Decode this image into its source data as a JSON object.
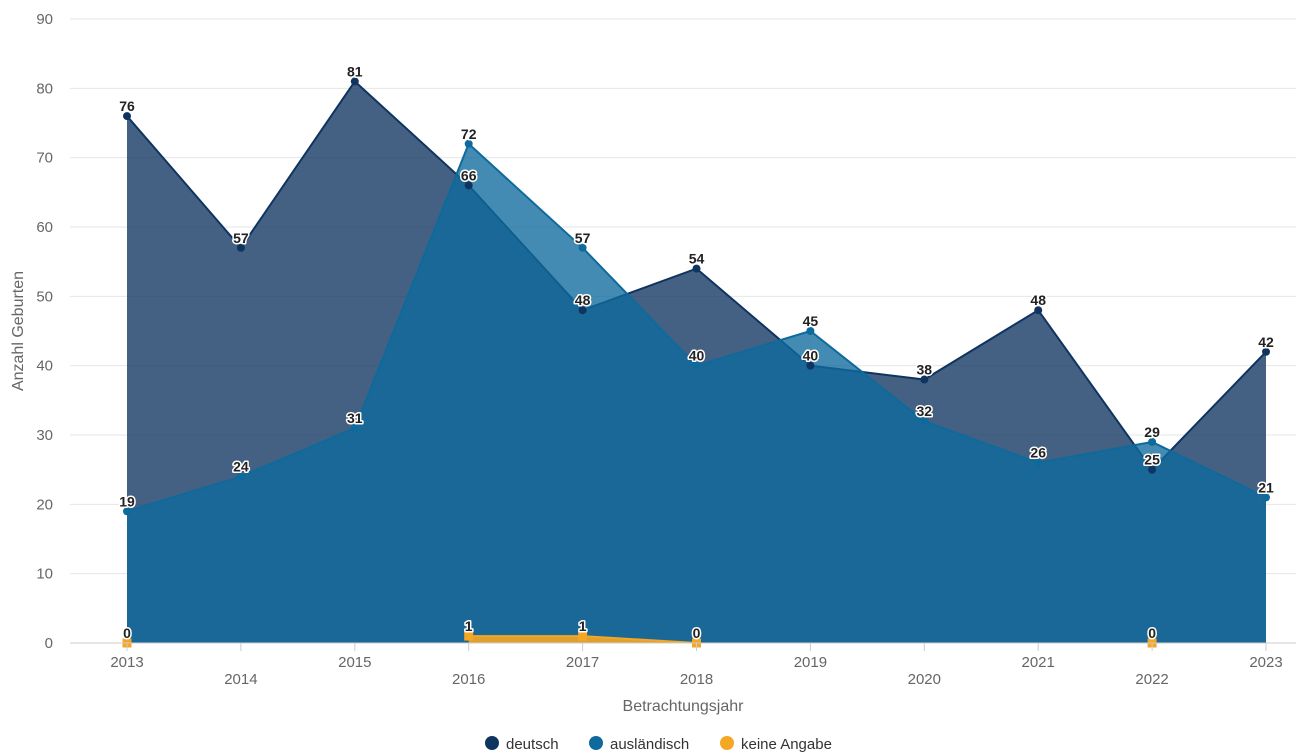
{
  "chart_data": {
    "type": "area",
    "x": [
      "2013",
      "2014",
      "2015",
      "2016",
      "2017",
      "2018",
      "2019",
      "2020",
      "2021",
      "2022",
      "2023"
    ],
    "xlabel": "Betrachtungsjahr",
    "ylabel": "Anzahl Geburten",
    "ylim": [
      0,
      90
    ],
    "yticks": [
      0,
      10,
      20,
      30,
      40,
      50,
      60,
      70,
      80,
      90
    ],
    "grid": true,
    "legend_position": "bottom-center",
    "series": [
      {
        "name": "deutsch",
        "color": "#0f3460",
        "values": [
          76,
          57,
          81,
          66,
          48,
          54,
          40,
          38,
          48,
          25,
          42
        ],
        "labels": [
          "76",
          "57",
          "81",
          "66",
          "48",
          "54",
          "40",
          "38",
          "48",
          "25",
          "42"
        ]
      },
      {
        "name": "ausländisch",
        "color": "#0e6a9c",
        "values": [
          19,
          24,
          31,
          72,
          57,
          40,
          45,
          32,
          26,
          29,
          21
        ],
        "labels": [
          "19",
          "24",
          "31",
          "72",
          "57",
          "40",
          "45",
          "32",
          "26",
          "29",
          "21"
        ]
      },
      {
        "name": "keine Angabe",
        "color": "#f5a623",
        "values": [
          0,
          null,
          null,
          1,
          1,
          0,
          null,
          null,
          null,
          0,
          null
        ],
        "labels": [
          "0",
          null,
          null,
          "1",
          "1",
          "0",
          null,
          null,
          null,
          "0",
          null
        ]
      }
    ]
  }
}
